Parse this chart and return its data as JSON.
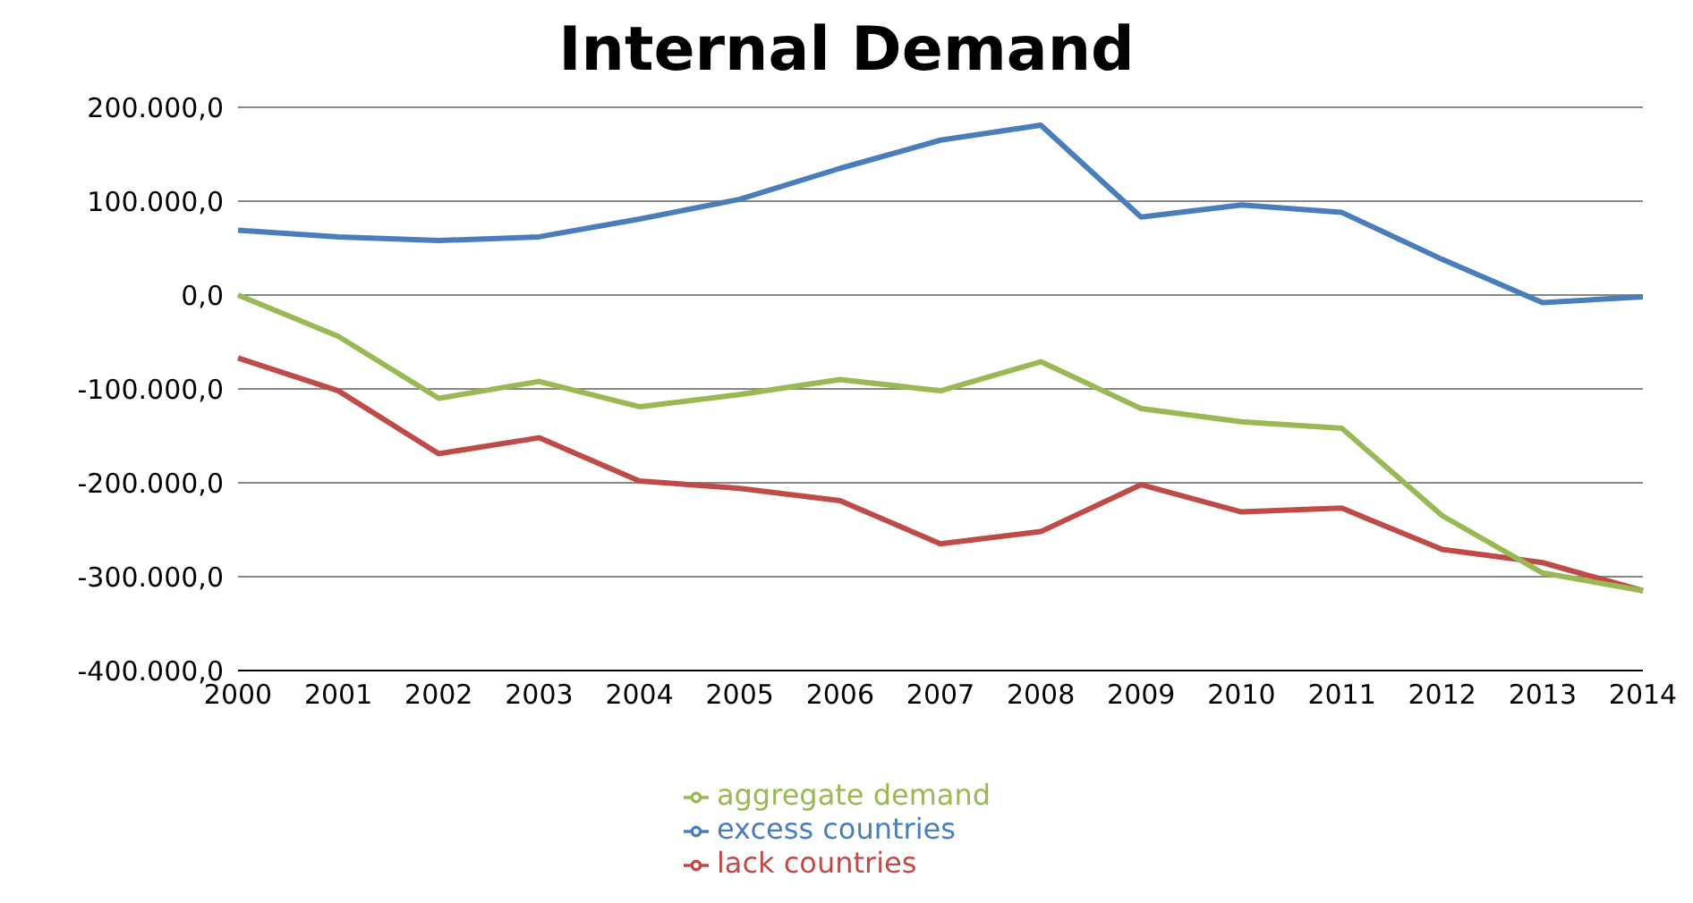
{
  "chart_data": {
    "type": "line",
    "title": "Internal Demand",
    "categories": [
      "2000",
      "2001",
      "2002",
      "2003",
      "2004",
      "2005",
      "2006",
      "2007",
      "2008",
      "2009",
      "2010",
      "2011",
      "2012",
      "2013",
      "2014"
    ],
    "series": [
      {
        "name": "excess countries",
        "color": "#4a7ebb",
        "values": [
          69000,
          62000,
          58000,
          62000,
          81000,
          102000,
          135000,
          165000,
          181000,
          83000,
          96000,
          88000,
          38000,
          -8000,
          -2000
        ]
      },
      {
        "name": "lack countries",
        "color": "#be4b48",
        "values": [
          -67000,
          -102000,
          -169000,
          -152000,
          -198000,
          -206000,
          -219000,
          -265000,
          -252000,
          -202000,
          -231000,
          -227000,
          -271000,
          -285000,
          -315000
        ]
      },
      {
        "name": "aggregate demand",
        "color": "#98b954",
        "values": [
          0,
          -44000,
          -110000,
          -92000,
          -119000,
          -106000,
          -90000,
          -102000,
          -71000,
          -121000,
          -135000,
          -142000,
          -235000,
          -296000,
          -315000
        ]
      }
    ],
    "ylim": [
      -400000,
      200000
    ],
    "yticks": [
      {
        "value": -400000,
        "label": "-400.000,0"
      },
      {
        "value": -300000,
        "label": "-300.000,0"
      },
      {
        "value": -200000,
        "label": "-200.000,0"
      },
      {
        "value": -100000,
        "label": "-100.000,0"
      },
      {
        "value": 0,
        "label": "0,0"
      },
      {
        "value": 100000,
        "label": "100.000,0"
      },
      {
        "value": 200000,
        "label": "200.000,0"
      }
    ],
    "grid": "y",
    "legend": "bottom",
    "marker": "none",
    "line_style": "solid"
  }
}
